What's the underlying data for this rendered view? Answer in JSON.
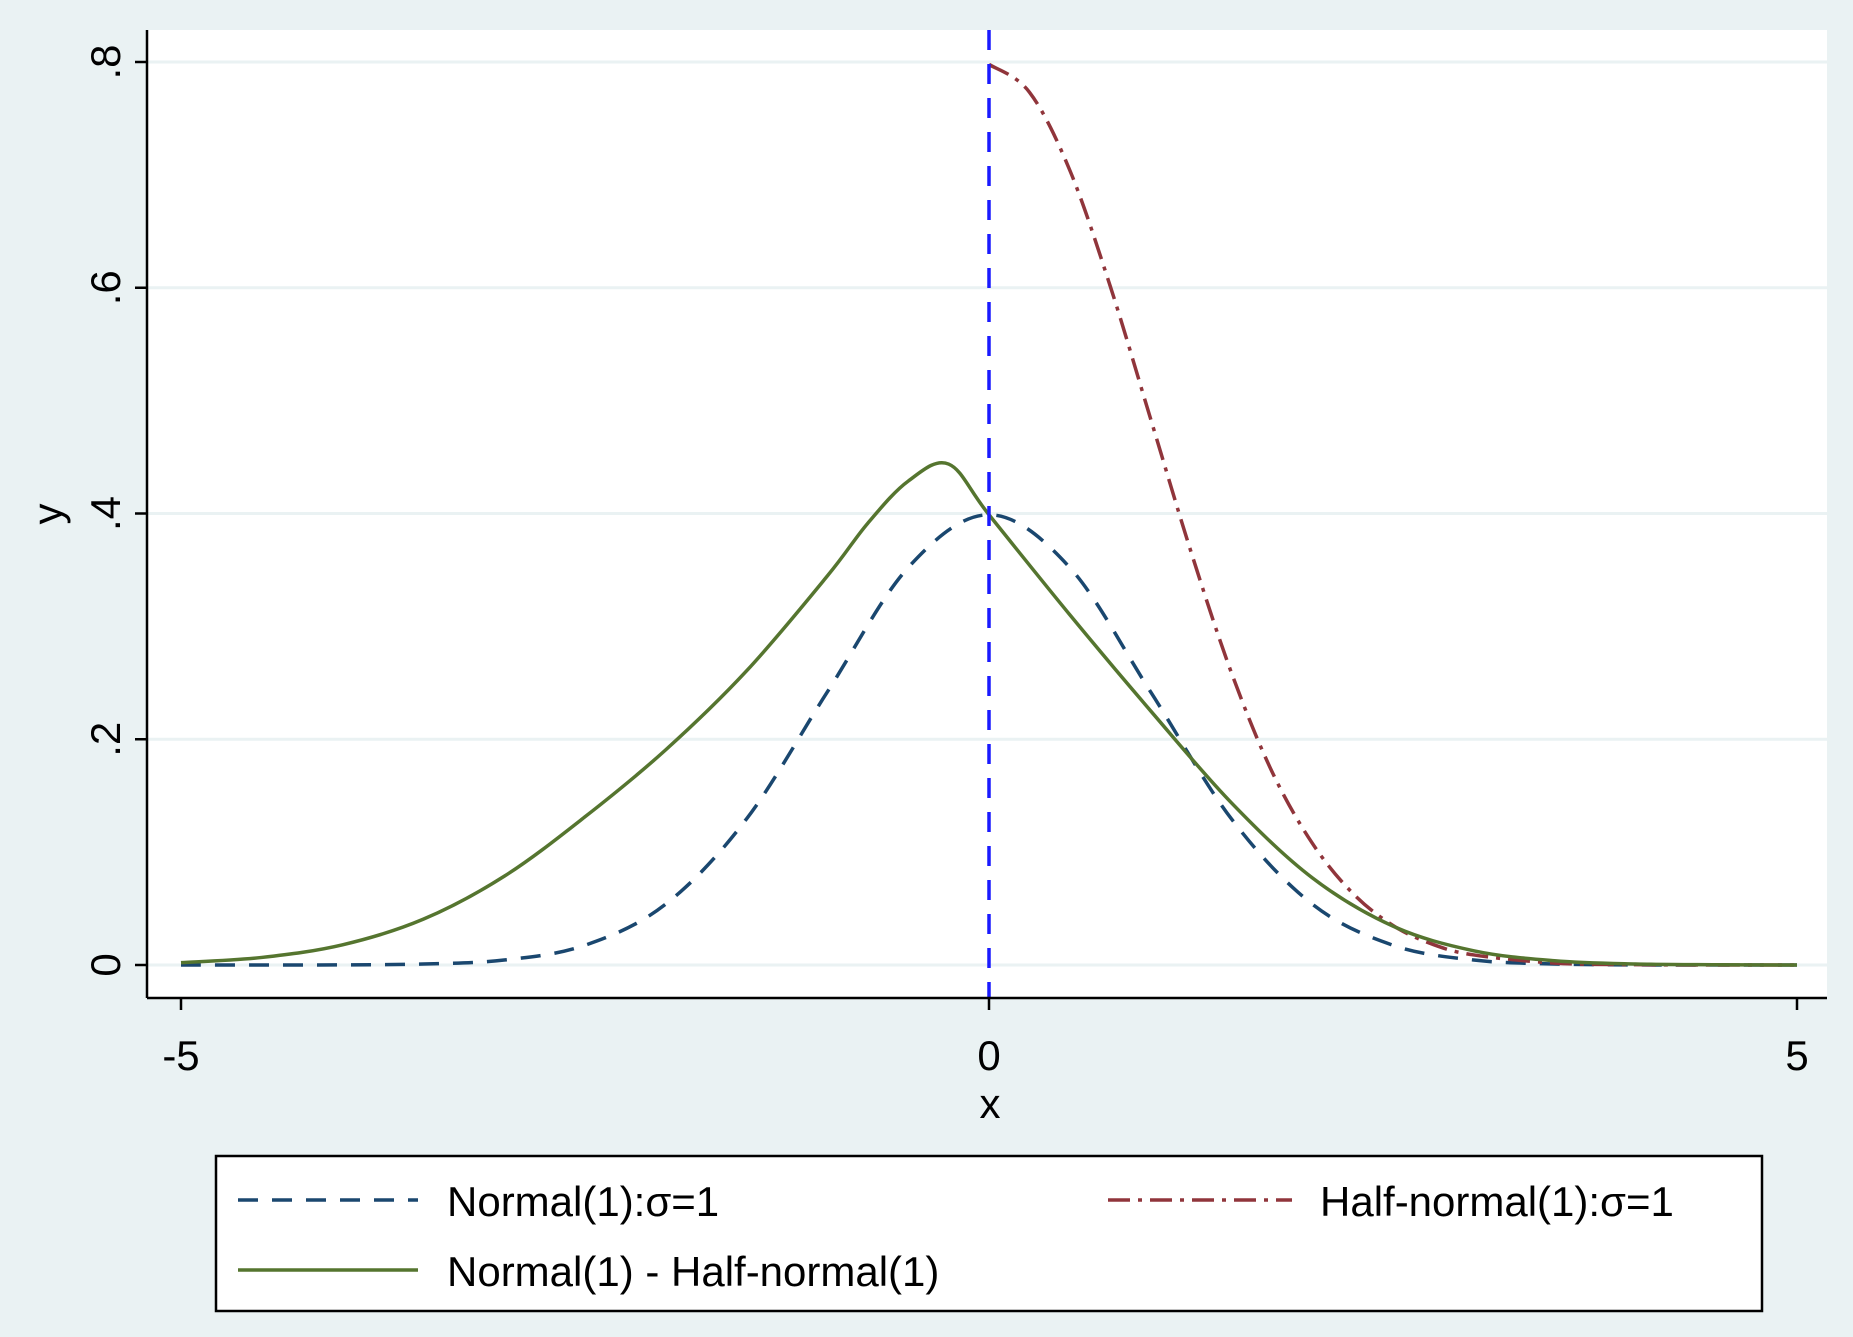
{
  "chart_data": {
    "type": "line",
    "xlabel": "x",
    "ylabel": "y",
    "xlim": [
      -5,
      5
    ],
    "ylim": [
      0,
      0.8
    ],
    "x_ticks": [
      -5,
      0,
      5
    ],
    "x_tick_labels": [
      "-5",
      "0",
      "5"
    ],
    "y_ticks": [
      0,
      0.2,
      0.4,
      0.6,
      0.8
    ],
    "y_tick_labels": [
      "0",
      ".2",
      ".4",
      ".6",
      ".8"
    ],
    "grid": true,
    "legend_position": "bottom",
    "vertical_reference_line": {
      "x": 0,
      "color": "#1a1aff",
      "style": "dashed"
    },
    "series": [
      {
        "name": "Normal(1):σ=1",
        "color": "#1a476f",
        "style": "dashed",
        "x": [
          -5,
          -4.5,
          -4,
          -3.5,
          -3,
          -2.5,
          -2,
          -1.5,
          -1,
          -0.5,
          0,
          0.5,
          1,
          1.5,
          2,
          2.5,
          3,
          3.5,
          4,
          4.5,
          5
        ],
        "y": [
          0.0,
          0.0,
          0.0001,
          0.0009,
          0.0044,
          0.0175,
          0.054,
          0.1295,
          0.242,
          0.3521,
          0.3989,
          0.3521,
          0.242,
          0.1295,
          0.054,
          0.0175,
          0.0044,
          0.0009,
          0.0001,
          0.0,
          0.0
        ]
      },
      {
        "name": "Half-normal(1):σ=1",
        "color": "#90353b",
        "style": "dashdot",
        "x": [
          0,
          0.25,
          0.5,
          0.75,
          1,
          1.25,
          1.5,
          1.75,
          2,
          2.25,
          2.5,
          2.75,
          3,
          3.5,
          4,
          4.5,
          5
        ],
        "y": [
          0.7979,
          0.7733,
          0.7041,
          0.6015,
          0.4839,
          0.3661,
          0.259,
          0.1717,
          0.108,
          0.0637,
          0.035,
          0.0181,
          0.0089,
          0.0017,
          0.0003,
          0.0,
          0.0
        ]
      },
      {
        "name": "Normal(1) - Half-normal(1)",
        "color": "#55752f",
        "style": "solid",
        "x": [
          -5,
          -4.5,
          -4,
          -3.5,
          -3,
          -2.5,
          -2,
          -1.5,
          -1,
          -0.75,
          -0.5,
          -0.25,
          0,
          0.5,
          1,
          1.5,
          2,
          2.5,
          3,
          3.5,
          4,
          4.5,
          5
        ],
        "y": [
          0.0021,
          0.0067,
          0.0179,
          0.0406,
          0.0786,
          0.1313,
          0.1907,
          0.2606,
          0.3447,
          0.3914,
          0.4287,
          0.4438,
          0.3989,
          0.3103,
          0.2252,
          0.1437,
          0.0773,
          0.0344,
          0.0126,
          0.0038,
          0.0009,
          0.0002,
          0.0
        ]
      }
    ]
  }
}
